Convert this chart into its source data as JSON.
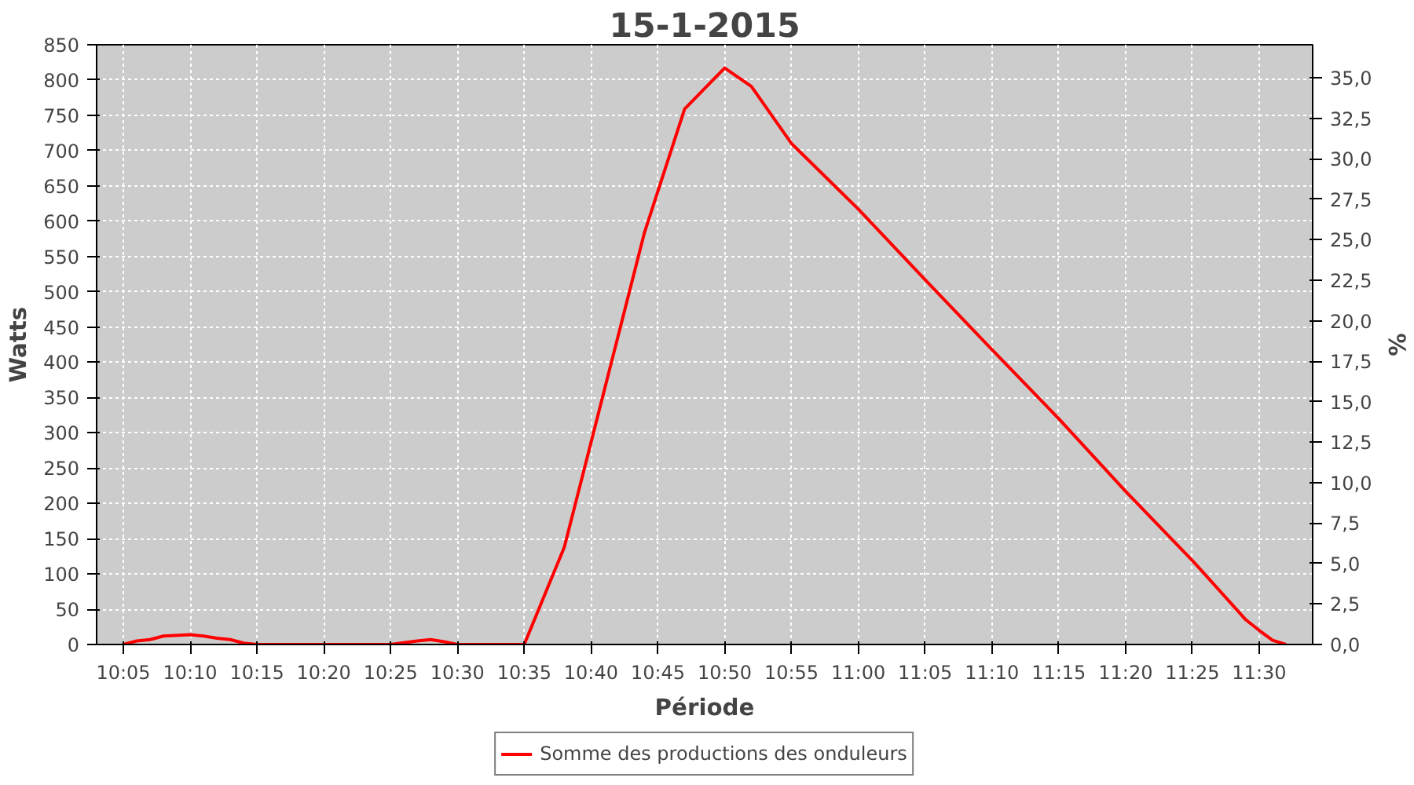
{
  "chart_data": {
    "type": "line",
    "title": "15-1-2015",
    "xlabel": "Période",
    "ylabel": "Watts",
    "y2label": "%",
    "x": [
      "2015-01-15T10:05",
      "2015-01-15T10:06",
      "2015-01-15T10:07",
      "2015-01-15T10:08",
      "2015-01-15T10:10",
      "2015-01-15T10:11",
      "2015-01-15T10:12",
      "2015-01-15T10:13",
      "2015-01-15T10:14",
      "2015-01-15T10:15",
      "2015-01-15T10:25",
      "2015-01-15T10:27",
      "2015-01-15T10:28",
      "2015-01-15T10:29",
      "2015-01-15T10:30",
      "2015-01-15T10:35",
      "2015-01-15T10:38",
      "2015-01-15T10:44",
      "2015-01-15T10:47",
      "2015-01-15T10:50",
      "2015-01-15T10:52",
      "2015-01-15T10:55",
      "2015-01-15T11:00",
      "2015-01-15T11:05",
      "2015-01-15T11:10",
      "2015-01-15T11:15",
      "2015-01-15T11:20",
      "2015-01-15T11:25",
      "2015-01-15T11:29",
      "2015-01-15T11:30",
      "2015-01-15T11:31",
      "2015-01-15T11:32"
    ],
    "series": [
      {
        "name": "Somme des productions des onduleurs",
        "color": "#ff0000",
        "values": [
          0,
          5,
          7,
          12,
          14,
          12,
          9,
          7,
          2,
          0,
          0,
          5,
          7,
          4,
          0,
          0,
          138,
          584,
          759,
          817,
          791,
          710,
          617,
          517,
          418,
          320,
          217,
          119,
          35,
          20,
          6,
          0
        ]
      }
    ],
    "xlim": [
      "2015-01-15T10:03",
      "2015-01-15T11:34"
    ],
    "xticks": [
      {
        "value": "2015-01-15T10:05",
        "label": "10:05"
      },
      {
        "value": "2015-01-15T10:10",
        "label": "10:10"
      },
      {
        "value": "2015-01-15T10:15",
        "label": "10:15"
      },
      {
        "value": "2015-01-15T10:20",
        "label": "10:20"
      },
      {
        "value": "2015-01-15T10:25",
        "label": "10:25"
      },
      {
        "value": "2015-01-15T10:30",
        "label": "10:30"
      },
      {
        "value": "2015-01-15T10:35",
        "label": "10:35"
      },
      {
        "value": "2015-01-15T10:40",
        "label": "10:40"
      },
      {
        "value": "2015-01-15T10:45",
        "label": "10:45"
      },
      {
        "value": "2015-01-15T10:50",
        "label": "10:50"
      },
      {
        "value": "2015-01-15T10:55",
        "label": "10:55"
      },
      {
        "value": "2015-01-15T11:00",
        "label": "11:00"
      },
      {
        "value": "2015-01-15T11:05",
        "label": "11:05"
      },
      {
        "value": "2015-01-15T11:10",
        "label": "11:10"
      },
      {
        "value": "2015-01-15T11:15",
        "label": "11:15"
      },
      {
        "value": "2015-01-15T11:20",
        "label": "11:20"
      },
      {
        "value": "2015-01-15T11:25",
        "label": "11:25"
      },
      {
        "value": "2015-01-15T11:30",
        "label": "11:30"
      }
    ],
    "ylim": [
      0,
      850
    ],
    "yticks": [
      0,
      50,
      100,
      150,
      200,
      250,
      300,
      350,
      400,
      450,
      500,
      550,
      600,
      650,
      700,
      750,
      800,
      850
    ],
    "y2lim": [
      0,
      37.05
    ],
    "y2ticks": [
      {
        "value": 0,
        "label": "0,0"
      },
      {
        "value": 2.5,
        "label": "2,5"
      },
      {
        "value": 5,
        "label": "5,0"
      },
      {
        "value": 7.5,
        "label": "7,5"
      },
      {
        "value": 10,
        "label": "10,0"
      },
      {
        "value": 12.5,
        "label": "12,5"
      },
      {
        "value": 15,
        "label": "15,0"
      },
      {
        "value": 17.5,
        "label": "17,5"
      },
      {
        "value": 20,
        "label": "20,0"
      },
      {
        "value": 22.5,
        "label": "22,5"
      },
      {
        "value": 25,
        "label": "25,0"
      },
      {
        "value": 27.5,
        "label": "27,5"
      },
      {
        "value": 30,
        "label": "30,0"
      },
      {
        "value": 32.5,
        "label": "32,5"
      },
      {
        "value": 35,
        "label": "35,0"
      }
    ],
    "grid": true,
    "legend": "bottom",
    "marker": "none",
    "line_style": "solid"
  }
}
